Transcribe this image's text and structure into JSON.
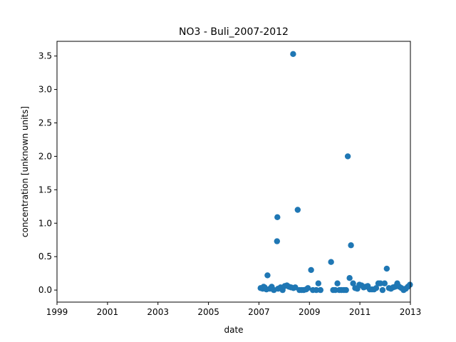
{
  "chart_data": {
    "type": "scatter",
    "title": "NO3 - Buli_2007-2012",
    "xlabel": "date",
    "ylabel": "concentration [unknown units]",
    "xlim": [
      "1999-01-01",
      "2013-01-01"
    ],
    "ylim": [
      -0.18,
      3.72
    ],
    "x_ticks": [
      "1999",
      "2001",
      "2003",
      "2005",
      "2007",
      "2009",
      "2011",
      "2013"
    ],
    "y_ticks": [
      "0.0",
      "0.5",
      "1.0",
      "1.5",
      "2.0",
      "2.5",
      "3.0",
      "3.5"
    ],
    "marker_color": "#1f77b4",
    "grid": false,
    "series": [
      {
        "x": [
          "2007-01-25",
          "2007-02-25",
          "2007-03-10",
          "2007-03-25",
          "2007-04-20",
          "2007-05-05",
          "2007-06-10",
          "2007-07-05",
          "2007-08-05",
          "2007-09-20",
          "2007-09-25",
          "2007-10-05",
          "2007-11-10",
          "2007-12-10",
          "2008-01-10",
          "2008-02-10",
          "2008-03-10",
          "2008-04-10",
          "2008-05-10",
          "2008-05-15",
          "2008-06-10",
          "2008-07-15",
          "2008-08-10",
          "2008-09-10",
          "2008-10-10",
          "2008-11-15",
          "2008-12-10",
          "2009-01-25",
          "2009-02-20",
          "2009-04-10",
          "2009-05-10",
          "2009-06-10",
          "2009-11-10",
          "2009-12-10",
          "2010-01-10",
          "2010-02-10",
          "2010-03-10",
          "2010-04-10",
          "2010-05-15",
          "2010-06-15",
          "2010-07-10",
          "2010-08-05",
          "2010-08-25",
          "2010-09-25",
          "2010-10-25",
          "2010-11-25",
          "2010-12-25",
          "2011-01-25",
          "2011-02-25",
          "2011-03-25",
          "2011-04-25",
          "2011-05-25",
          "2011-06-25",
          "2011-07-25",
          "2011-08-25",
          "2011-09-25",
          "2011-10-25",
          "2011-11-25",
          "2011-12-25",
          "2012-01-25",
          "2012-02-25",
          "2012-03-25",
          "2012-04-25",
          "2012-05-25",
          "2012-06-25",
          "2012-07-25",
          "2012-08-25",
          "2012-09-25",
          "2012-10-25",
          "2012-11-25",
          "2012-12-25"
        ],
        "y": [
          0.03,
          0.02,
          0.05,
          0.04,
          0.01,
          0.22,
          0.02,
          0.05,
          0.0,
          0.73,
          1.09,
          0.02,
          0.04,
          0.0,
          0.06,
          0.07,
          0.05,
          0.04,
          3.53,
          0.03,
          0.04,
          1.2,
          0.0,
          0.0,
          0.0,
          0.01,
          0.03,
          0.3,
          0.0,
          0.0,
          0.1,
          0.0,
          0.42,
          0.0,
          0.0,
          0.1,
          0.0,
          0.0,
          0.0,
          0.0,
          2.0,
          0.18,
          0.67,
          0.1,
          0.03,
          0.02,
          0.08,
          0.07,
          0.04,
          0.05,
          0.06,
          0.01,
          0.01,
          0.01,
          0.03,
          0.1,
          0.1,
          0.0,
          0.1,
          0.32,
          0.03,
          0.02,
          0.04,
          0.05,
          0.1,
          0.05,
          0.03,
          0.0,
          0.02,
          0.05,
          0.08
        ]
      }
    ]
  }
}
